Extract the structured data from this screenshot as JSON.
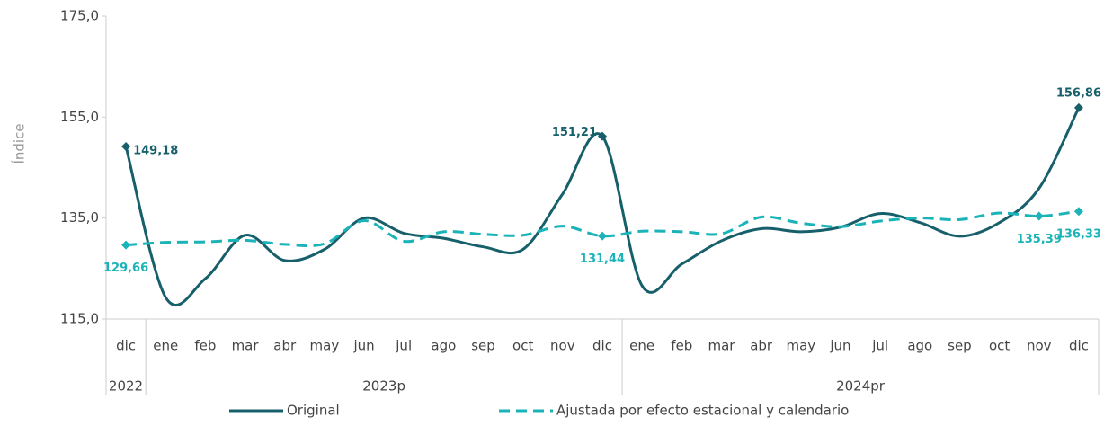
{
  "chart_data": {
    "type": "line",
    "y_label": "Índice",
    "categories": [
      "dic",
      "ene",
      "feb",
      "mar",
      "abr",
      "may",
      "jun",
      "jul",
      "ago",
      "sep",
      "oct",
      "nov",
      "dic",
      "ene",
      "feb",
      "mar",
      "abr",
      "may",
      "jun",
      "jul",
      "ago",
      "sep",
      "oct",
      "nov",
      "dic"
    ],
    "groups": [
      {
        "label": "2022",
        "span": 1
      },
      {
        "label": "2023p",
        "span": 12
      },
      {
        "label": "2024pr",
        "span": 12
      }
    ],
    "series": [
      {
        "name": "Original",
        "color": "#17606b",
        "dash": false,
        "values": [
          149.18,
          119.3,
          123.0,
          131.6,
          126.6,
          128.8,
          135.0,
          132.0,
          131.0,
          129.3,
          128.8,
          139.8,
          151.21,
          121.6,
          125.9,
          130.5,
          132.9,
          132.3,
          133.2,
          135.9,
          134.1,
          131.4,
          134.1,
          140.9,
          156.86
        ],
        "value_labels": [
          "149,18",
          null,
          null,
          null,
          null,
          null,
          null,
          null,
          null,
          null,
          null,
          null,
          "151,21",
          null,
          null,
          null,
          null,
          null,
          null,
          null,
          null,
          null,
          null,
          null,
          "156,86"
        ]
      },
      {
        "name": "Ajustada por efecto estacional y calendario",
        "color": "#1ab3b8",
        "dash": true,
        "values": [
          129.66,
          130.2,
          130.3,
          130.6,
          129.8,
          129.9,
          134.5,
          130.4,
          132.3,
          131.8,
          131.6,
          133.4,
          131.44,
          132.4,
          132.3,
          131.9,
          135.2,
          134.0,
          133.3,
          134.4,
          135.0,
          134.7,
          136.0,
          135.39,
          136.33
        ],
        "value_labels": [
          "129,66",
          null,
          null,
          null,
          null,
          null,
          null,
          null,
          null,
          null,
          null,
          null,
          "131,44",
          null,
          null,
          null,
          null,
          null,
          null,
          null,
          null,
          null,
          null,
          "135,39",
          "136,33"
        ]
      }
    ],
    "ylim": [
      115,
      175
    ],
    "yticks": [
      {
        "value": 115,
        "label": "115,0"
      },
      {
        "value": 135,
        "label": "135,0"
      },
      {
        "value": 155,
        "label": "155,0"
      },
      {
        "value": 175,
        "label": "175,0"
      }
    ]
  }
}
